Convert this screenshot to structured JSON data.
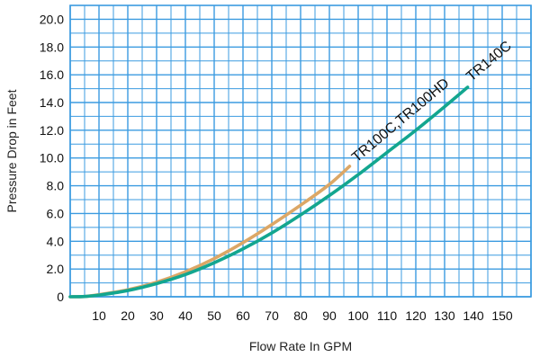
{
  "chart_data": {
    "type": "line",
    "xlabel": "Flow Rate In GPM",
    "ylabel": "Pressure Drop in Feet",
    "xlim": [
      0,
      160
    ],
    "ylim": [
      0,
      21
    ],
    "x_ticks": [
      10,
      20,
      30,
      40,
      50,
      60,
      70,
      80,
      90,
      100,
      110,
      120,
      130,
      140,
      150
    ],
    "x_tick_labels": [
      "10",
      "20",
      "30",
      "40",
      "50",
      "60",
      "70",
      "80",
      "90",
      "100",
      "110",
      "120",
      "130",
      "140",
      "150"
    ],
    "y_ticks": [
      0,
      2,
      4,
      6,
      8,
      10,
      12,
      14,
      16,
      18,
      20
    ],
    "y_tick_labels": [
      "0",
      "2.0",
      "4.0",
      "6.0",
      "8.0",
      "10.0",
      "12.0",
      "14.0",
      "16.0",
      "18.0",
      "20.0"
    ],
    "grid": true,
    "grid_minor_step": 5,
    "grid_color": "#3b9be0",
    "series": [
      {
        "name": "TR100C,TR100HD",
        "color": "#dca766",
        "x": [
          0,
          5,
          10,
          20,
          30,
          40,
          50,
          60,
          70,
          80,
          90,
          97
        ],
        "y": [
          0,
          0.02,
          0.15,
          0.5,
          1.05,
          1.8,
          2.75,
          3.9,
          5.2,
          6.6,
          8.1,
          9.4
        ]
      },
      {
        "name": "TR140C",
        "color": "#13a68f",
        "x": [
          0,
          5,
          10,
          20,
          30,
          40,
          50,
          60,
          70,
          80,
          90,
          100,
          110,
          120,
          130,
          138
        ],
        "y": [
          0,
          0.02,
          0.12,
          0.45,
          0.95,
          1.6,
          2.45,
          3.45,
          4.6,
          5.9,
          7.3,
          8.8,
          10.4,
          12.0,
          13.7,
          15.1
        ]
      }
    ]
  }
}
